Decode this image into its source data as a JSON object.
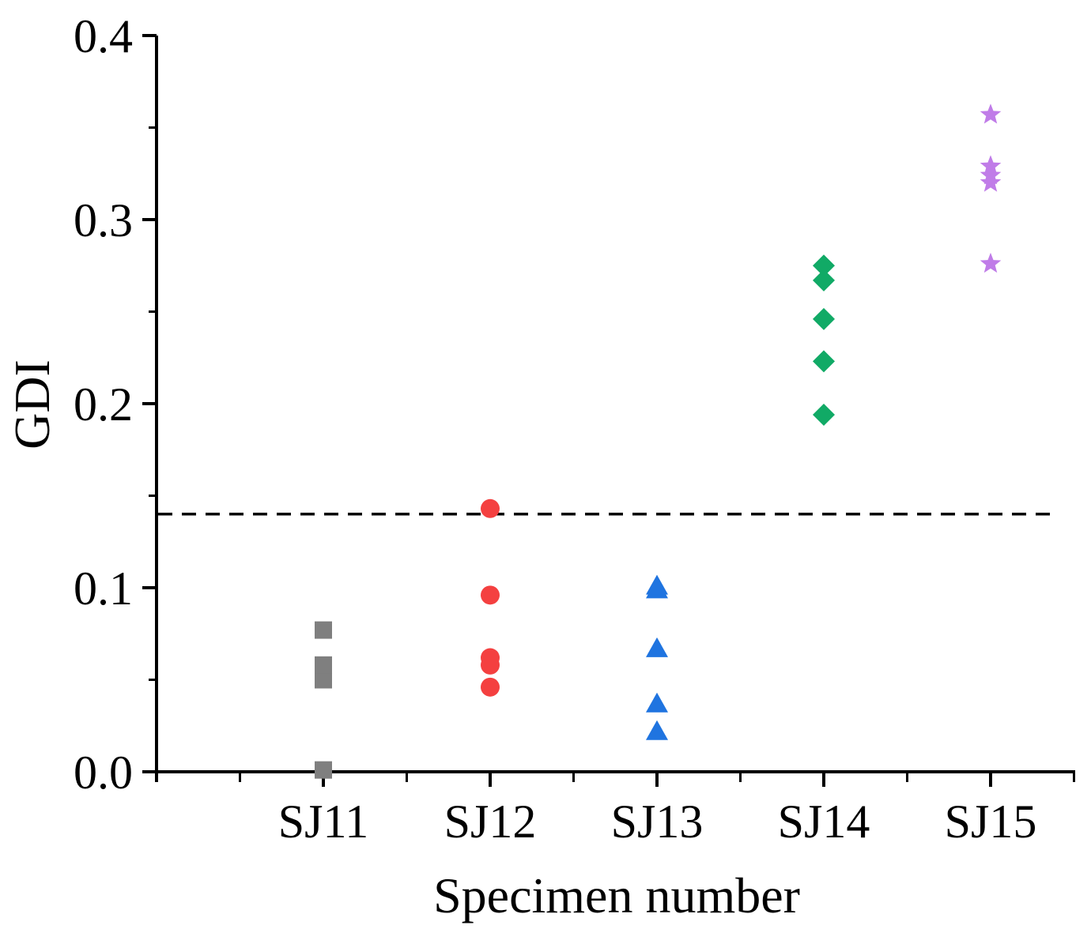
{
  "chart_data": {
    "type": "scatter",
    "title": "",
    "xlabel": "Specimen number",
    "ylabel": "GDI",
    "categories": [
      "SJ11",
      "SJ12",
      "SJ13",
      "SJ14",
      "SJ15"
    ],
    "y_ticks": [
      "0.0",
      "0.1",
      "0.2",
      "0.3",
      "0.4"
    ],
    "ylim": [
      0,
      0.4
    ],
    "grid": false,
    "legend": "none",
    "reference_line": {
      "y": 0.14,
      "style": "dashed",
      "color": "#000000"
    },
    "series": [
      {
        "category": "SJ11",
        "marker": "square",
        "color": "#7f7f7f",
        "values": [
          0.001,
          0.05,
          0.054,
          0.058,
          0.077
        ]
      },
      {
        "category": "SJ12",
        "marker": "circle",
        "color": "#f44040",
        "values": [
          0.046,
          0.058,
          0.062,
          0.096,
          0.143
        ]
      },
      {
        "category": "SJ13",
        "marker": "triangle",
        "color": "#1f74e0",
        "values": [
          0.022,
          0.037,
          0.067,
          0.099,
          0.101
        ]
      },
      {
        "category": "SJ14",
        "marker": "diamond",
        "color": "#11aa66",
        "values": [
          0.194,
          0.223,
          0.246,
          0.267,
          0.275
        ]
      },
      {
        "category": "SJ15",
        "marker": "star",
        "color": "#c07ce8",
        "values": [
          0.276,
          0.32,
          0.324,
          0.329,
          0.357
        ]
      }
    ]
  }
}
